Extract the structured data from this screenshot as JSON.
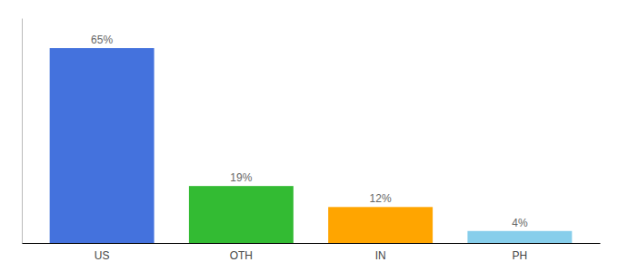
{
  "chart_data": {
    "type": "bar",
    "categories": [
      "US",
      "OTH",
      "IN",
      "PH"
    ],
    "values": [
      65,
      19,
      12,
      4
    ],
    "value_labels": [
      "65%",
      "19%",
      "12%",
      "4%"
    ],
    "colors": [
      "#4472DD",
      "#33BB33",
      "#FFA500",
      "#87CEEB"
    ],
    "ylim": [
      0,
      75
    ],
    "grid": false,
    "data_labels": true,
    "tick_labels": "x"
  }
}
